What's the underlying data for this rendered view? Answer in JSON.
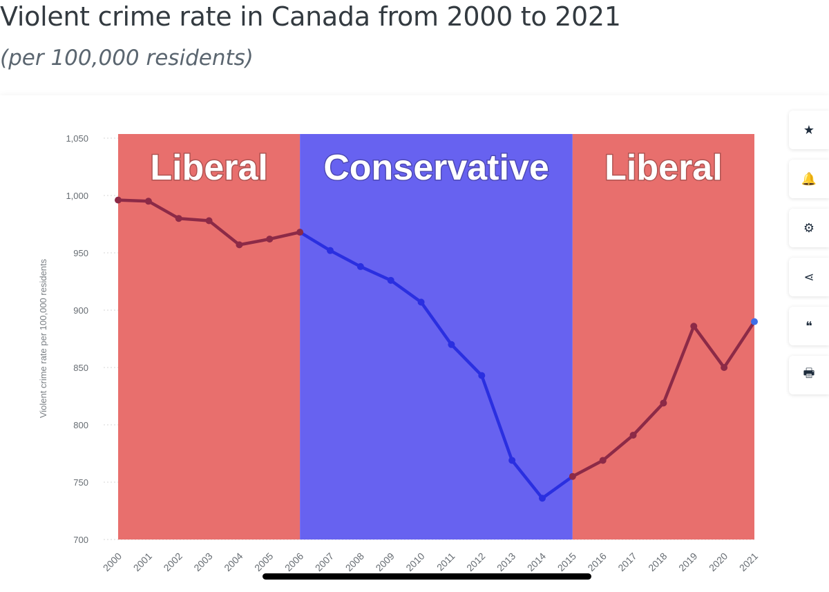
{
  "page": {
    "title": "Violent crime rate in Canada from 2000 to 2021",
    "subtitle": "(per 100,000 residents)"
  },
  "colors": {
    "liberal_band": "#e86f6d",
    "conservative_band": "#6762f0",
    "line_on_liberal": "#8c2a47",
    "line_on_conservative": "#2a2fe0",
    "last_point": "#3f6fe8"
  },
  "toolbar": {
    "icons": [
      "star-icon",
      "bell-icon",
      "gear-icon",
      "share-icon",
      "quote-icon",
      "print-icon"
    ],
    "glyphs": [
      "★",
      "🔔",
      "⚙",
      "⋖",
      "❝",
      "🖶"
    ]
  },
  "chart_data": {
    "type": "line",
    "title": "",
    "xlabel": "",
    "ylabel": "Violent crime rate per 100,000 residents",
    "x": [
      "2000",
      "2001",
      "2002",
      "2003",
      "2004",
      "2005",
      "2006",
      "2007",
      "2008",
      "2009",
      "2010",
      "2011",
      "2012",
      "2013",
      "2014",
      "2015",
      "2016",
      "2017",
      "2018",
      "2019",
      "2020",
      "2021"
    ],
    "series": [
      {
        "values": [
          996,
          995,
          980,
          978,
          957,
          962,
          968,
          952,
          938,
          926,
          907,
          870,
          843,
          769,
          736,
          755,
          769,
          791,
          819,
          886,
          850,
          890
        ]
      }
    ],
    "ylim": [
      700,
      1050
    ],
    "yticks": [
      "700",
      "750",
      "800",
      "850",
      "900",
      "950",
      "1,000",
      "1,050"
    ],
    "grid": true,
    "bands": [
      {
        "label": "Liberal",
        "from": "2000",
        "to": "2006",
        "party": "liberal"
      },
      {
        "label": "Conservative",
        "from": "2006",
        "to": "2015",
        "party": "conservative"
      },
      {
        "label": "Liberal",
        "from": "2015",
        "to": "2021",
        "party": "liberal"
      }
    ]
  }
}
